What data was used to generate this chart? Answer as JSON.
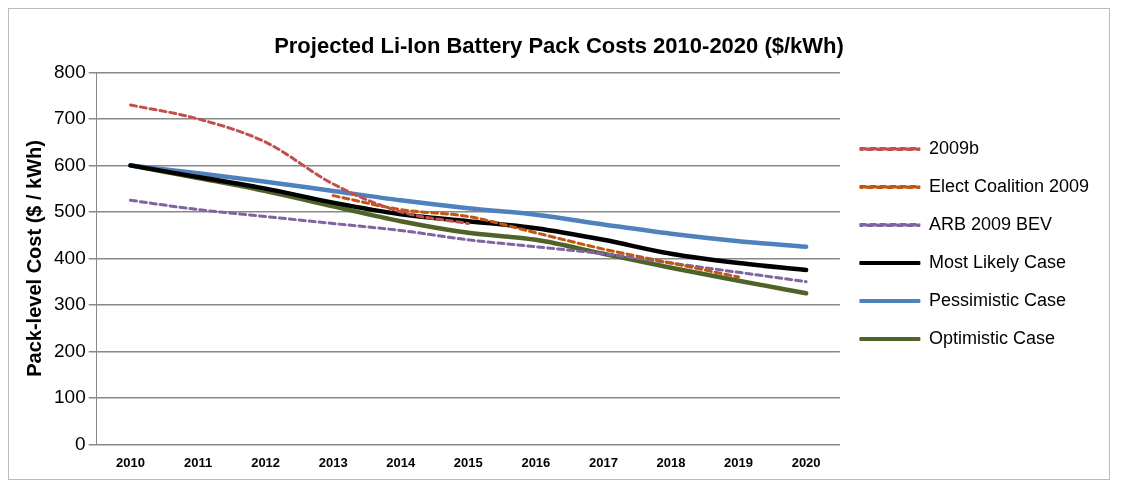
{
  "chart_data": {
    "type": "line",
    "title": "Projected Li-Ion Battery Pack Costs 2010-2020 ($/kWh)",
    "ylabel": "Pack-level Cost ($ / kWh)",
    "categories": [
      "2010",
      "2011",
      "2012",
      "2013",
      "2014",
      "2015",
      "2016",
      "2017",
      "2018",
      "2019",
      "2020"
    ],
    "ylim": [
      0,
      800
    ],
    "yticks": [
      0,
      100,
      200,
      300,
      400,
      500,
      600,
      700,
      800
    ],
    "grid": "y",
    "legend": "right",
    "marker": "none",
    "series": [
      {
        "name": "2009b",
        "color": "#c0504d",
        "line_style": "dashed",
        "values": [
          730,
          700,
          650,
          560,
          500,
          475,
          null,
          null,
          null,
          null,
          null
        ]
      },
      {
        "name": "Elect Coalition 2009",
        "color": "#c0560f",
        "line_style": "dashed",
        "values": [
          null,
          null,
          null,
          535,
          505,
          490,
          455,
          420,
          390,
          360,
          null
        ]
      },
      {
        "name": "ARB 2009 BEV",
        "color": "#8064a2",
        "line_style": "dashed",
        "values": [
          525,
          505,
          490,
          475,
          460,
          440,
          425,
          410,
          390,
          370,
          350
        ]
      },
      {
        "name": "Most Likely Case",
        "color": "#000000",
        "line_style": "solid",
        "values": [
          600,
          575,
          550,
          520,
          495,
          480,
          465,
          440,
          410,
          390,
          375
        ]
      },
      {
        "name": "Pessimistic Case",
        "color": "#4f81bd",
        "line_style": "solid",
        "values": [
          600,
          583,
          565,
          545,
          525,
          508,
          494,
          473,
          453,
          437,
          425
        ]
      },
      {
        "name": "Optimistic Case",
        "color": "#4f6228",
        "line_style": "solid",
        "values": [
          600,
          573,
          545,
          512,
          480,
          455,
          440,
          410,
          380,
          352,
          325
        ]
      }
    ]
  }
}
